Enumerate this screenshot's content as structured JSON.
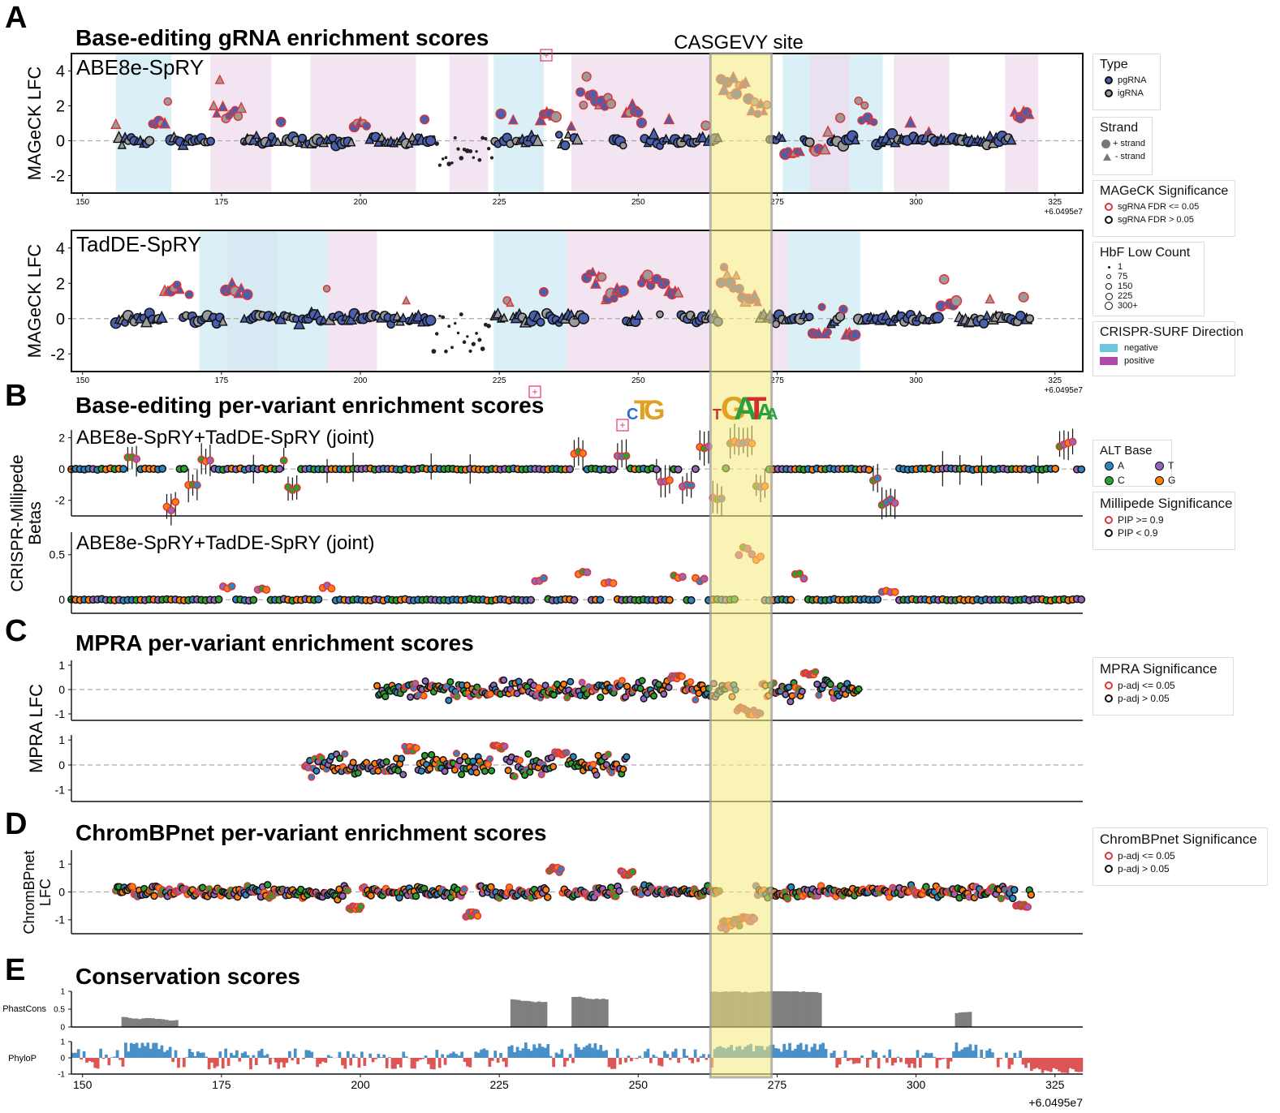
{
  "panel_letters": [
    "A",
    "B",
    "C",
    "D",
    "E"
  ],
  "titles": {
    "A": "Base-editing gRNA enrichment scores",
    "B": "Base-editing per-variant enrichment scores",
    "C": "MPRA per-variant enrichment scores",
    "D": "ChromBPnet per-variant enrichment scores",
    "E": "Conservation scores"
  },
  "highlight": {
    "label": "CASGEVY site",
    "x_range": [
      263,
      274
    ],
    "color": "#f5ea7a"
  },
  "axis_offset_label": "+6.0495e7",
  "colors": {
    "pg": "#4a5fae",
    "ig": "#9a9a9a",
    "sig_edge": "#e03535",
    "ns_edge": "#111111",
    "surf_neg": "#cfe9f3",
    "surf_pos": "#eedcec",
    "alt_A": "#2e86c1",
    "alt_C": "#2ca02c",
    "alt_T": "#9467bd",
    "alt_G": "#ff7f0e",
    "phylo_pos": "#4a90c8",
    "phylo_neg": "#dd5555",
    "phast": "#7f7f7f"
  },
  "chart_data": [
    {
      "id": "A1",
      "type": "scatter",
      "panel_label": "ABE8e-SpRY",
      "ylabel": "MAGeCK LFC",
      "xlim": [
        148,
        330
      ],
      "ylim": [
        -3,
        5
      ],
      "xticks": [
        150,
        175,
        200,
        225,
        250,
        275,
        300,
        325
      ],
      "yticks": [
        4,
        2,
        0,
        -2
      ],
      "surf_regions": [
        {
          "x0": 156,
          "x1": 166,
          "dir": "negative"
        },
        {
          "x0": 173,
          "x1": 184,
          "dir": "positive"
        },
        {
          "x0": 191,
          "x1": 210,
          "dir": "positive"
        },
        {
          "x0": 216,
          "x1": 223,
          "dir": "positive"
        },
        {
          "x0": 224,
          "x1": 233,
          "dir": "negative"
        },
        {
          "x0": 238,
          "x1": 263,
          "dir": "positive"
        },
        {
          "x0": 276,
          "x1": 288,
          "dir": "negative"
        },
        {
          "x0": 281,
          "x1": 288,
          "dir": "positive"
        },
        {
          "x0": 288,
          "x1": 294,
          "dir": "negative"
        },
        {
          "x0": 296,
          "x1": 306,
          "dir": "positive"
        },
        {
          "x0": 316,
          "x1": 322,
          "dir": "positive"
        }
      ],
      "x_range": [
        156,
        321
      ],
      "spikes": [
        [
          164,
          1.2
        ],
        [
          175,
          2.1
        ],
        [
          177,
          1.8
        ],
        [
          200,
          1.0
        ],
        [
          234,
          1.5
        ],
        [
          241,
          2.8
        ],
        [
          244,
          2.4
        ],
        [
          249,
          2.0
        ],
        [
          266,
          3.8
        ],
        [
          268,
          3.5
        ],
        [
          270,
          3.2
        ],
        [
          272,
          2.2
        ],
        [
          278,
          -0.8
        ],
        [
          283,
          -0.6
        ],
        [
          291,
          1.4
        ],
        [
          319,
          1.6
        ]
      ]
    },
    {
      "id": "A2",
      "type": "scatter",
      "panel_label": "TadDE-SpRY",
      "ylabel": "MAGeCK LFC",
      "xlim": [
        148,
        330
      ],
      "ylim": [
        -3,
        5
      ],
      "xticks": [
        150,
        175,
        200,
        225,
        250,
        275,
        300,
        325
      ],
      "yticks": [
        4,
        2,
        0,
        -2
      ],
      "surf_regions": [
        {
          "x0": 171,
          "x1": 176,
          "dir": "negative"
        },
        {
          "x0": 176,
          "x1": 185,
          "dir": "positive"
        },
        {
          "x0": 176,
          "x1": 185,
          "dir": "negative"
        },
        {
          "x0": 185,
          "x1": 194,
          "dir": "negative"
        },
        {
          "x0": 194,
          "x1": 203,
          "dir": "positive"
        },
        {
          "x0": 224,
          "x1": 237,
          "dir": "negative"
        },
        {
          "x0": 237,
          "x1": 263,
          "dir": "positive"
        },
        {
          "x0": 274,
          "x1": 277,
          "dir": "positive"
        },
        {
          "x0": 277,
          "x1": 290,
          "dir": "negative"
        }
      ],
      "x_range": [
        156,
        321
      ],
      "spikes": [
        [
          166,
          2.0
        ],
        [
          177,
          1.9
        ],
        [
          242,
          2.7
        ],
        [
          246,
          1.6
        ],
        [
          252,
          2.5
        ],
        [
          256,
          2.0
        ],
        [
          266,
          2.8
        ],
        [
          268,
          2.4
        ],
        [
          270,
          1.2
        ],
        [
          283,
          -0.9
        ],
        [
          288,
          -1.0
        ],
        [
          306,
          1.0
        ]
      ]
    },
    {
      "id": "B1",
      "type": "scatter",
      "panel_label": "ABE8e-SpRY+TadDE-SpRY (joint)",
      "xlim": [
        148,
        330
      ],
      "ylim": [
        -3,
        2.5
      ],
      "yticks": [
        2,
        0,
        -2
      ],
      "x_range": [
        148,
        330
      ],
      "spikes": [
        [
          159,
          0.8
        ],
        [
          166,
          -2.6
        ],
        [
          170,
          -1.2
        ],
        [
          172,
          0.6
        ],
        [
          187,
          0.6
        ],
        [
          188,
          -1.3
        ],
        [
          239,
          1.2
        ],
        [
          247,
          1.0
        ],
        [
          255,
          -0.8
        ],
        [
          259,
          -1.1
        ],
        [
          262,
          1.5
        ],
        [
          264,
          -2.2
        ],
        [
          267,
          1.7
        ],
        [
          269,
          1.9
        ],
        [
          271,
          1.8
        ],
        [
          272,
          -1.1
        ],
        [
          293,
          -0.7
        ],
        [
          295,
          -2.2
        ],
        [
          327,
          1.8
        ]
      ]
    },
    {
      "id": "B2",
      "type": "scatter",
      "panel_label": "ABE8e-SpRY+TadDE-SpRY (joint)",
      "ylabel": "CRISPR-Millipede Betas",
      "xlim": [
        148,
        330
      ],
      "ylim": [
        -0.15,
        0.75
      ],
      "yticks": [
        0.5,
        0.0
      ],
      "x_range": [
        148,
        330
      ],
      "spikes": [
        [
          176,
          0.15
        ],
        [
          182,
          0.12
        ],
        [
          194,
          0.15
        ],
        [
          232,
          0.25
        ],
        [
          240,
          0.3
        ],
        [
          245,
          0.2
        ],
        [
          257,
          0.3
        ],
        [
          261,
          0.25
        ],
        [
          269,
          0.6
        ],
        [
          271,
          0.55
        ],
        [
          279,
          0.28
        ],
        [
          295,
          0.1
        ]
      ]
    },
    {
      "id": "C1",
      "type": "scatter",
      "ylabel": "MPRA LFC",
      "xlim": [
        148,
        330
      ],
      "ylim": [
        -1.2,
        1.2
      ],
      "yticks": [
        1,
        0,
        -1
      ],
      "x_range": [
        203,
        290
      ],
      "spikes": [
        [
          257,
          0.55
        ],
        [
          269,
          -0.9
        ],
        [
          271,
          -1.0
        ],
        [
          281,
          0.7
        ]
      ]
    },
    {
      "id": "C2",
      "type": "scatter",
      "xlim": [
        148,
        330
      ],
      "ylim": [
        -1.2,
        1.2
      ],
      "yticks": [
        1,
        0,
        -1
      ],
      "x_range": [
        190,
        248
      ],
      "spikes": [
        [
          209,
          0.7
        ],
        [
          225,
          0.8
        ],
        [
          236,
          0.5
        ]
      ]
    },
    {
      "id": "D1",
      "type": "scatter",
      "ylabel": "ChromBPnet LFC",
      "xlim": [
        148,
        330
      ],
      "ylim": [
        -1.5,
        1.5
      ],
      "yticks": [
        1,
        0,
        -1
      ],
      "x_range": [
        156,
        321
      ],
      "spikes": [
        [
          199,
          -0.6
        ],
        [
          220,
          -0.9
        ],
        [
          235,
          0.85
        ],
        [
          248,
          0.75
        ],
        [
          266,
          -1.3
        ],
        [
          268,
          -1.2
        ],
        [
          270,
          -1.1
        ],
        [
          319,
          -0.55
        ]
      ]
    },
    {
      "id": "E1",
      "type": "bar",
      "ylabel": "PhastCons",
      "xlim": [
        148,
        330
      ],
      "ylim": [
        0,
        1.0
      ],
      "yticks": [
        1.0,
        0.5,
        0.0
      ],
      "segments": [
        {
          "x0": 157,
          "x1": 167,
          "v": 0.3
        },
        {
          "x0": 227,
          "x1": 233,
          "v": 0.8
        },
        {
          "x0": 238,
          "x1": 244,
          "v": 0.85
        },
        {
          "x0": 263,
          "x1": 274,
          "v": 1.0
        },
        {
          "x0": 274,
          "x1": 283,
          "v": 1.0
        },
        {
          "x0": 307,
          "x1": 310,
          "v": 0.4
        }
      ]
    },
    {
      "id": "E2",
      "type": "bar",
      "ylabel": "PhyloP",
      "xlim": [
        148,
        330
      ],
      "ylim": [
        -1,
        1
      ],
      "yticks": [
        1,
        0,
        -1
      ],
      "xticks": [
        150,
        175,
        200,
        225,
        250,
        275,
        300,
        325
      ]
    }
  ],
  "legends": {
    "type": {
      "title": "Type",
      "items": [
        "pgRNA",
        "igRNA"
      ]
    },
    "strand": {
      "title": "Strand",
      "items": [
        "+ strand",
        "- strand"
      ]
    },
    "mageck": {
      "title": "MAGeCK Significance",
      "items": [
        "sgRNA FDR <= 0.05",
        "sgRNA FDR > 0.05"
      ]
    },
    "hbf": {
      "title": "HbF Low Count",
      "items": [
        "1",
        "75",
        "150",
        "225",
        "300+"
      ]
    },
    "surf": {
      "title": "CRISPR-SURF Direction",
      "items": [
        "negative",
        "positive"
      ]
    },
    "alt": {
      "title": "ALT Base",
      "items": [
        "A",
        "T",
        "C",
        "G"
      ]
    },
    "millipede": {
      "title": "Millipede Significance",
      "items": [
        "PIP >= 0.9",
        "PIP < 0.9"
      ]
    },
    "mpra": {
      "title": "MPRA Significance",
      "items": [
        "p-adj <= 0.05",
        "p-adj > 0.05"
      ]
    },
    "chrombp": {
      "title": "ChromBPnet Significance",
      "items": [
        "p-adj <= 0.05",
        "p-adj > 0.05"
      ]
    }
  }
}
